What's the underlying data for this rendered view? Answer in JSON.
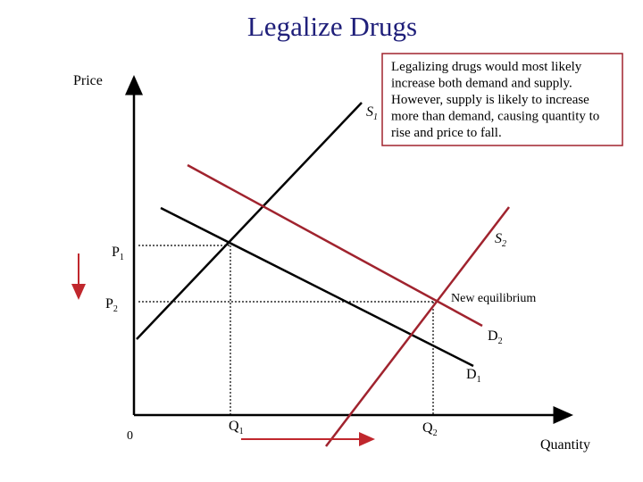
{
  "title": "Legalize Drugs",
  "axes": {
    "y_label": "Price",
    "x_label": "Quantity",
    "origin": "0"
  },
  "note": [
    "Legalizing drugs would most likely",
    "increase both demand and supply.",
    "However, supply is likely to increase",
    "more than demand, causing quantity to",
    "rise and price to fall."
  ],
  "labels": {
    "s1": {
      "base": "S",
      "sub": "1"
    },
    "s2": {
      "base": "S",
      "sub": "2"
    },
    "d1": {
      "base": "D",
      "sub": "1"
    },
    "d2": {
      "base": "D",
      "sub": "2"
    },
    "p1": {
      "base": "P",
      "sub": "1"
    },
    "p2": {
      "base": "P",
      "sub": "2"
    },
    "q1": {
      "base": "Q",
      "sub": "1"
    },
    "q2": {
      "base": "Q",
      "sub": "2"
    },
    "new_equilibrium": "New equilibrium"
  }
}
